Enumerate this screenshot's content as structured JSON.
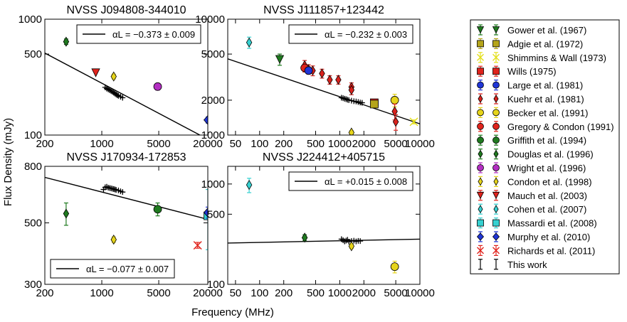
{
  "figure": {
    "ylabel": "Flux Density (mJy)",
    "xlabel": "Frequency (MHz)"
  },
  "legend": [
    {
      "name": "Gower et al. (1967)",
      "marker": "tri-down",
      "color": "#1f7a1f"
    },
    {
      "name": "Adgie et al. (1972)",
      "marker": "square",
      "color": "#b5a51a"
    },
    {
      "name": "Shimmins & Wall (1973)",
      "marker": "x",
      "color": "#e3df1a"
    },
    {
      "name": "Wills (1975)",
      "marker": "square",
      "color": "#e0231c"
    },
    {
      "name": "Large et al. (1981)",
      "marker": "circle",
      "color": "#1f35d6"
    },
    {
      "name": "Kuehr et al. (1981)",
      "marker": "thin-diamond",
      "color": "#d9221d"
    },
    {
      "name": "Becker et al. (1991)",
      "marker": "circle",
      "color": "#e6d41a"
    },
    {
      "name": "Gregory & Condon (1991)",
      "marker": "circle",
      "color": "#e0231c"
    },
    {
      "name": "Griffith et al. (1994)",
      "marker": "circle",
      "color": "#1f7a1f"
    },
    {
      "name": "Douglas et al. (1996)",
      "marker": "thin-diamond",
      "color": "#1f7a1f"
    },
    {
      "name": "Wright et al. (1996)",
      "marker": "circle",
      "color": "#b32ec2"
    },
    {
      "name": "Condon et al. (1998)",
      "marker": "thin-diamond",
      "color": "#e6d41a"
    },
    {
      "name": "Mauch et al. (2003)",
      "marker": "tri-down",
      "color": "#e0231c"
    },
    {
      "name": "Cohen et al. (2007)",
      "marker": "thin-diamond",
      "color": "#35d1d1"
    },
    {
      "name": "Massardi et al. (2008)",
      "marker": "square",
      "color": "#35d1d1"
    },
    {
      "name": "Murphy et al. (2010)",
      "marker": "diamond",
      "color": "#1f35d6"
    },
    {
      "name": "Richards et al. (2011)",
      "marker": "x",
      "color": "#e0231c"
    },
    {
      "name": "This work",
      "marker": "plus",
      "color": "#000000"
    }
  ],
  "chart_data": [
    {
      "type": "scatter",
      "scale": "log-log",
      "title": "NVSS J094808-344010",
      "xlim": [
        200,
        20000
      ],
      "ylim": [
        100,
        1000
      ],
      "xticks": [
        {
          "v": 200,
          "label": "200"
        },
        {
          "v": 1000,
          "label": "1000"
        },
        {
          "v": 5000,
          "label": "5000"
        },
        {
          "v": 20000,
          "label": "20000"
        }
      ],
      "yticks": [
        {
          "v": 100,
          "label": "100"
        },
        {
          "v": 500,
          "label": "500"
        },
        {
          "v": 1000,
          "label": "1000"
        }
      ],
      "fit": {
        "label": "αL = −0.373 ± 0.009",
        "x": [
          200,
          20000
        ],
        "y": [
          510,
          92
        ]
      },
      "fit_legend_pos": "top-right",
      "points": [
        {
          "source": "Douglas et al. (1996)",
          "x": 365,
          "y": 640,
          "err": 35
        },
        {
          "source": "Mauch et al. (2003)",
          "x": 843,
          "y": 345,
          "err": 0
        },
        {
          "source": "Condon et al. (1998)",
          "x": 1400,
          "y": 320,
          "err": 15
        },
        {
          "source": "Wright et al. (1996)",
          "x": 4850,
          "y": 262,
          "err": 18
        },
        {
          "source": "Murphy et al. (2010)",
          "x": 20000,
          "y": 135,
          "err": 8
        }
      ],
      "this_work": {
        "x": [
          1100,
          1150,
          1200,
          1250,
          1300,
          1350,
          1400,
          1450,
          1500,
          1550,
          1600,
          1700,
          1800
        ],
        "y": [
          258,
          252,
          248,
          244,
          240,
          236,
          232,
          228,
          224,
          221,
          218,
          214,
          210
        ]
      }
    },
    {
      "type": "scatter",
      "scale": "log-log",
      "title": "NVSS J111857+123442",
      "xlim": [
        40,
        10000
      ],
      "ylim": [
        1000,
        10000
      ],
      "xticks": [
        {
          "v": 50,
          "label": "50"
        },
        {
          "v": 100,
          "label": "100"
        },
        {
          "v": 200,
          "label": "200"
        },
        {
          "v": 500,
          "label": "500"
        },
        {
          "v": 1000,
          "label": "1000"
        },
        {
          "v": 2000,
          "label": "2000"
        },
        {
          "v": 5000,
          "label": "5000"
        },
        {
          "v": 10000,
          "label": "10000"
        }
      ],
      "yticks": [
        {
          "v": 1000,
          "label": "1000"
        },
        {
          "v": 2000,
          "label": "2000"
        },
        {
          "v": 5000,
          "label": "5000"
        },
        {
          "v": 10000,
          "label": "10000"
        }
      ],
      "fit": {
        "label": "αL = −0.232 ± 0.003",
        "x": [
          40,
          10000
        ],
        "y": [
          4550,
          1250
        ]
      },
      "fit_legend_pos": "top-right",
      "points": [
        {
          "source": "Cohen et al. (2007)",
          "x": 74,
          "y": 6300,
          "err": 700
        },
        {
          "source": "Gower et al. (1967)",
          "x": 178,
          "y": 4500,
          "err": 500
        },
        {
          "source": "Kuehr et al. (1981)",
          "x": 365,
          "y": 4000,
          "err": 400
        },
        {
          "source": "Kuehr et al. (1981)",
          "x": 408,
          "y": 3700,
          "err": 350
        },
        {
          "source": "Kuehr et al. (1981)",
          "x": 460,
          "y": 3600,
          "err": 350
        },
        {
          "source": "Gregory & Condon (1991)",
          "x": 365,
          "y": 3800,
          "err": 300
        },
        {
          "source": "Large et al. (1981)",
          "x": 408,
          "y": 3600,
          "err": 100
        },
        {
          "source": "Kuehr et al. (1981)",
          "x": 600,
          "y": 3400,
          "err": 300
        },
        {
          "source": "Kuehr et al. (1981)",
          "x": 750,
          "y": 3000,
          "err": 250
        },
        {
          "source": "Kuehr et al. (1981)",
          "x": 960,
          "y": 3000,
          "err": 250
        },
        {
          "source": "Kuehr et al. (1981)",
          "x": 1400,
          "y": 2600,
          "err": 220
        },
        {
          "source": "Kuehr et al. (1981)",
          "x": 1400,
          "y": 2450,
          "err": 220
        },
        {
          "source": "Wills (1975)",
          "x": 2695,
          "y": 1900,
          "err": 100
        },
        {
          "source": "Adgie et al. (1972)",
          "x": 2695,
          "y": 1850,
          "err": 100
        },
        {
          "source": "Becker et al. (1991)",
          "x": 4850,
          "y": 2000,
          "err": 250
        },
        {
          "source": "Kuehr et al. (1981)",
          "x": 4850,
          "y": 1600,
          "err": 250
        },
        {
          "source": "Kuehr et al. (1981)",
          "x": 5000,
          "y": 1300,
          "err": 200
        },
        {
          "source": "Shimmins & Wall (1973)",
          "x": 8400,
          "y": 1300,
          "err": 50
        },
        {
          "source": "Condon et al. (1998)",
          "x": 1400,
          "y": 1050,
          "err": 40
        }
      ],
      "this_work": {
        "x": [
          1050,
          1100,
          1150,
          1200,
          1250,
          1300,
          1400,
          1500,
          1600,
          1700,
          1800,
          1900
        ],
        "y": [
          2100,
          2080,
          2060,
          2040,
          2020,
          2000,
          1980,
          1960,
          1950,
          1930,
          1910,
          1900
        ]
      }
    },
    {
      "type": "scatter",
      "scale": "log-log",
      "title": "NVSS J170934-172853",
      "xlim": [
        200,
        20000
      ],
      "ylim": [
        300,
        800
      ],
      "xticks": [
        {
          "v": 200,
          "label": "200"
        },
        {
          "v": 1000,
          "label": "1000"
        },
        {
          "v": 5000,
          "label": "5000"
        },
        {
          "v": 20000,
          "label": "20000"
        }
      ],
      "yticks": [
        {
          "v": 300,
          "label": "300"
        },
        {
          "v": 500,
          "label": "500"
        },
        {
          "v": 800,
          "label": "800"
        }
      ],
      "fit": {
        "label": "αL = −0.077 ± 0.007",
        "x": [
          200,
          20000
        ],
        "y": [
          730,
          515
        ]
      },
      "fit_legend_pos": "bottom-left",
      "points": [
        {
          "source": "Douglas et al. (1996)",
          "x": 365,
          "y": 540,
          "err": 50
        },
        {
          "source": "Condon et al. (1998)",
          "x": 1400,
          "y": 435,
          "err": 10
        },
        {
          "source": "Griffith et al. (1994)",
          "x": 4850,
          "y": 560,
          "err": 30
        },
        {
          "source": "Richards et al. (2011)",
          "x": 15000,
          "y": 415,
          "err": 10
        },
        {
          "source": "Massardi et al. (2008)",
          "x": 20000,
          "y": 530,
          "err": 130
        },
        {
          "source": "Murphy et al. (2010)",
          "x": 20000,
          "y": 545,
          "err": 25
        }
      ],
      "this_work": {
        "x": [
          1050,
          1100,
          1150,
          1200,
          1250,
          1300,
          1350,
          1400,
          1450,
          1500,
          1600,
          1700,
          1800
        ],
        "y": [
          660,
          672,
          675,
          670,
          668,
          666,
          664,
          662,
          660,
          658,
          655,
          650,
          646
        ]
      }
    },
    {
      "type": "scatter",
      "scale": "log-log",
      "title": "NVSS J224412+405715",
      "xlim": [
        40,
        10000
      ],
      "ylim": [
        100,
        1500
      ],
      "xticks": [
        {
          "v": 50,
          "label": "50"
        },
        {
          "v": 100,
          "label": "100"
        },
        {
          "v": 200,
          "label": "200"
        },
        {
          "v": 500,
          "label": "500"
        },
        {
          "v": 1000,
          "label": "1000"
        },
        {
          "v": 2000,
          "label": "2000"
        },
        {
          "v": 5000,
          "label": "5000"
        },
        {
          "v": 10000,
          "label": "10000"
        }
      ],
      "yticks": [
        {
          "v": 100,
          "label": "100"
        },
        {
          "v": 500,
          "label": "500"
        },
        {
          "v": 1000,
          "label": "1000"
        }
      ],
      "fit": {
        "label": "αL = +0.015 ± 0.008",
        "x": [
          40,
          10000
        ],
        "y": [
          258,
          282
        ]
      },
      "fit_legend_pos": "top-right",
      "points": [
        {
          "source": "Cohen et al. (2007)",
          "x": 74,
          "y": 980,
          "err": 160
        },
        {
          "source": "Douglas et al. (1996)",
          "x": 365,
          "y": 292,
          "err": 20
        },
        {
          "source": "Condon et al. (1998)",
          "x": 1400,
          "y": 240,
          "err": 12
        },
        {
          "source": "Becker et al. (1991)",
          "x": 4850,
          "y": 150,
          "err": 20
        }
      ],
      "this_work": {
        "x": [
          1050,
          1100,
          1150,
          1200,
          1250,
          1300,
          1400,
          1500,
          1600,
          1700,
          1800
        ],
        "y": [
          282,
          275,
          268,
          273,
          278,
          266,
          270,
          272,
          268,
          271,
          270
        ]
      }
    }
  ]
}
